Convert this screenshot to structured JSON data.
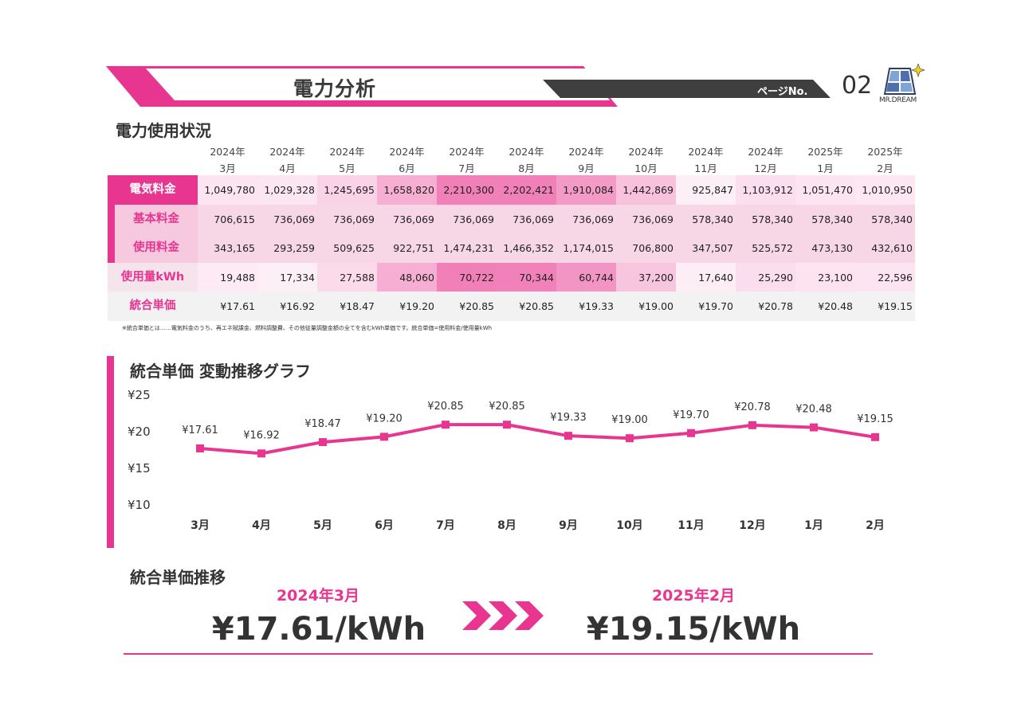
{
  "header": {
    "title": "電力分析",
    "page_label": "ページNo.",
    "page_number": "02",
    "logo_text": "MR.DREAM",
    "accent_color": "#e8358f",
    "dark_color": "#3f3f3f"
  },
  "usage": {
    "title": "電力使用状況",
    "months": [
      {
        "year": "2024年",
        "month": "3月"
      },
      {
        "year": "2024年",
        "month": "4月"
      },
      {
        "year": "2024年",
        "month": "5月"
      },
      {
        "year": "2024年",
        "month": "6月"
      },
      {
        "year": "2024年",
        "month": "7月"
      },
      {
        "year": "2024年",
        "month": "8月"
      },
      {
        "year": "2024年",
        "month": "9月"
      },
      {
        "year": "2024年",
        "month": "10月"
      },
      {
        "year": "2024年",
        "month": "11月"
      },
      {
        "year": "2024年",
        "month": "12月"
      },
      {
        "year": "2025年",
        "month": "1月"
      },
      {
        "year": "2025年",
        "month": "2月"
      }
    ],
    "rows": [
      {
        "label": "電気料金",
        "values": [
          "1,049,780",
          "1,029,328",
          "1,245,695",
          "1,658,820",
          "2,210,300",
          "2,202,421",
          "1,910,084",
          "1,442,869",
          "925,847",
          "1,103,912",
          "1,051,470",
          "1,010,950"
        ]
      },
      {
        "label": "基本料金",
        "values": [
          "706,615",
          "736,069",
          "736,069",
          "736,069",
          "736,069",
          "736,069",
          "736,069",
          "736,069",
          "578,340",
          "578,340",
          "578,340",
          "578,340"
        ]
      },
      {
        "label": "使用料金",
        "values": [
          "343,165",
          "293,259",
          "509,625",
          "922,751",
          "1,474,231",
          "1,466,352",
          "1,174,015",
          "706,800",
          "347,507",
          "525,572",
          "473,130",
          "432,610"
        ]
      },
      {
        "label": "使用量kWh",
        "values": [
          "19,488",
          "17,334",
          "27,588",
          "48,060",
          "70,722",
          "70,344",
          "60,744",
          "37,200",
          "17,640",
          "25,290",
          "23,100",
          "22,596"
        ]
      },
      {
        "label": "統合単価",
        "values": [
          "¥17.61",
          "¥16.92",
          "¥18.47",
          "¥19.20",
          "¥20.85",
          "¥20.85",
          "¥19.33",
          "¥19.00",
          "¥19.70",
          "¥20.78",
          "¥20.48",
          "¥19.15"
        ]
      }
    ],
    "note": "※統合単価とは……電気料金のうち、再エネ賦課金、燃料調整費、その他従量調整金額の全てを含むkWh単価です。統合単価=使用料金/使用量kWh"
  },
  "graph": {
    "title": "統合単価 変動推移グラフ"
  },
  "chart_data": {
    "type": "line",
    "title": "統合単価 変動推移グラフ",
    "categories": [
      "3月",
      "4月",
      "5月",
      "6月",
      "7月",
      "8月",
      "9月",
      "10月",
      "11月",
      "12月",
      "1月",
      "2月"
    ],
    "values": [
      17.61,
      16.92,
      18.47,
      19.2,
      20.85,
      20.85,
      19.33,
      19.0,
      19.7,
      20.78,
      20.48,
      19.15
    ],
    "data_labels": [
      "¥17.61",
      "¥16.92",
      "¥18.47",
      "¥19.20",
      "¥20.85",
      "¥20.85",
      "¥19.33",
      "¥19.00",
      "¥19.70",
      "¥20.78",
      "¥20.48",
      "¥19.15"
    ],
    "y_ticks": [
      "¥25",
      "¥20",
      "¥15",
      "¥10"
    ],
    "ylim": [
      10,
      25
    ],
    "grid": false,
    "color": "#e8358f"
  },
  "summary": {
    "title": "統合単価推移",
    "start_date": "2024年3月",
    "start_value": "¥17.61/kWh",
    "end_date": "2025年2月",
    "end_value": "¥19.15/kWh"
  }
}
